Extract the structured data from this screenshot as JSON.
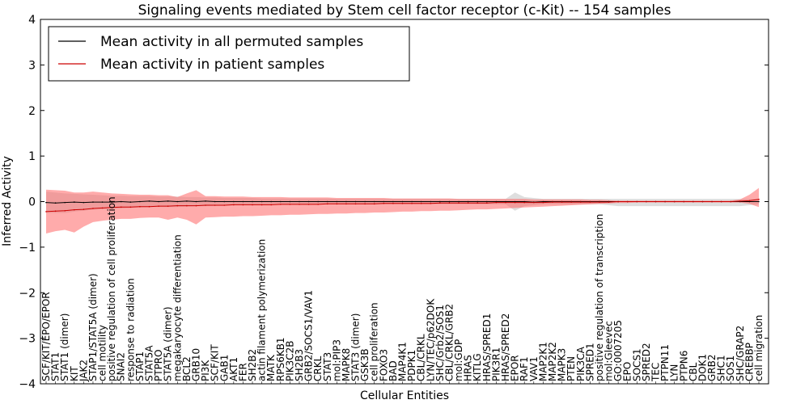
{
  "chart_data": {
    "type": "line",
    "title": "Signaling events mediated by Stem cell factor receptor (c-Kit) -- 154 samples",
    "xlabel": "Cellular Entities",
    "ylabel": "Inferred Activity",
    "ylim": [
      -4,
      4
    ],
    "yticks": [
      "4",
      "3",
      "2",
      "1",
      "0",
      "−1",
      "−2",
      "−3",
      "−4"
    ],
    "legend_position": "top-left",
    "colors": {
      "permuted_line": "#000000",
      "patient_line": "#cc0000",
      "permuted_band": "#c8c8c8",
      "patient_band": "#ff6666",
      "axis": "#000000"
    },
    "categories": [
      "SCF/KIT/EPO/EPOR",
      "STAT1",
      "STAT1 (dimer)",
      "KIT",
      "JAK2",
      "STAP1/STAT5A (dimer)",
      "cell motility",
      "positive regulation of cell proliferation",
      "SNAI2",
      "response to radiation",
      "STAP1",
      "STAT5A",
      "PTPRO",
      "STAT5A (dimer)",
      "megakaryocyte differentiation",
      "BCL2",
      "GRB10",
      "PI3K",
      "SCF/KIT",
      "GAB1",
      "AKT1",
      "FER",
      "SH2B2",
      "actin filament polymerization",
      "MATK",
      "RPS6KB1",
      "PIK3C2B",
      "SH2B3",
      "GRB2/SOCS1/VAV1",
      "CRKL",
      "STAT3",
      "mol:PIP3",
      "MAPK8",
      "STAT3 (dimer)",
      "GSK3B",
      "cell proliferation",
      "FOXO3",
      "BAD",
      "MAP4K1",
      "PDPK1",
      "CBL/CRKL",
      "LYN/TEC/p62DOK",
      "SHC/Grb2/SOS1",
      "CBL/CRKL/GRB2",
      "mol:GDP",
      "HRAS",
      "KITLG",
      "HRAS/SPRED1",
      "PIK3R1",
      "HRAS/SPRED2",
      "EPOR",
      "RAF1",
      "VAV1",
      "MAP2K1",
      "MAP2K2",
      "MAPK3",
      "PTEN",
      "PIK3CA",
      "SPRED1",
      "positive regulation of transcription",
      "mol:Gleevec",
      "GO:0007205",
      "EPO",
      "SOCS1",
      "SPRED2",
      "TEC",
      "PTPN11",
      "LYN",
      "PTPN6",
      "CBL",
      "DOK1",
      "GRB2",
      "SHC1",
      "SOS1",
      "SHC/GRAP2",
      "CREBBP",
      "cell migration"
    ],
    "series": [
      {
        "name": "Mean activity in all permuted samples",
        "values": [
          -0.02,
          -0.03,
          -0.02,
          -0.01,
          -0.02,
          -0.01,
          -0.01,
          -0.01,
          0,
          -0.01,
          0,
          0.01,
          0,
          0.01,
          0,
          0.01,
          0,
          0.01,
          0,
          0,
          0,
          0,
          0,
          0,
          0,
          0,
          0,
          0,
          0,
          0,
          0,
          0,
          0,
          0,
          0,
          0,
          0,
          0,
          0,
          0,
          0,
          0,
          0,
          0,
          0,
          0,
          0,
          0,
          0,
          0,
          0,
          0,
          -0.01,
          0,
          0,
          0,
          0,
          0,
          0,
          0,
          0,
          0,
          0,
          0,
          0,
          0,
          0,
          0,
          0,
          0,
          0,
          0,
          0,
          0,
          0,
          0,
          0
        ],
        "band_lower": [
          -0.25,
          -0.25,
          -0.25,
          -0.22,
          -0.2,
          -0.18,
          -0.17,
          -0.16,
          -0.15,
          -0.14,
          -0.13,
          -0.12,
          -0.12,
          -0.12,
          -0.12,
          -0.11,
          -0.1,
          -0.1,
          -0.09,
          -0.09,
          -0.08,
          -0.08,
          -0.08,
          -0.08,
          -0.07,
          -0.07,
          -0.07,
          -0.07,
          -0.07,
          -0.06,
          -0.06,
          -0.06,
          -0.06,
          -0.06,
          -0.06,
          -0.06,
          -0.06,
          -0.06,
          -0.06,
          -0.06,
          -0.06,
          -0.06,
          -0.06,
          -0.06,
          -0.06,
          -0.06,
          -0.06,
          -0.06,
          -0.06,
          -0.06,
          -0.2,
          -0.1,
          -0.08,
          -0.06,
          -0.06,
          -0.06,
          -0.06,
          -0.06,
          -0.06,
          -0.06,
          -0.08,
          -0.1,
          -0.1,
          -0.1,
          -0.1,
          -0.1,
          -0.1,
          -0.1,
          -0.1,
          -0.1,
          -0.1,
          -0.1,
          -0.1,
          -0.1,
          -0.1,
          -0.08,
          -0.06
        ],
        "band_upper": [
          0.22,
          0.2,
          0.18,
          0.17,
          0.16,
          0.15,
          0.14,
          0.13,
          0.13,
          0.12,
          0.12,
          0.12,
          0.11,
          0.11,
          0.11,
          0.1,
          0.1,
          0.09,
          0.09,
          0.08,
          0.08,
          0.08,
          0.08,
          0.07,
          0.07,
          0.07,
          0.07,
          0.07,
          0.07,
          0.07,
          0.07,
          0.06,
          0.06,
          0.06,
          0.06,
          0.06,
          0.06,
          0.06,
          0.06,
          0.06,
          0.06,
          0.06,
          0.06,
          0.06,
          0.06,
          0.06,
          0.06,
          0.06,
          0.06,
          0.06,
          0.2,
          0.1,
          0.08,
          0.06,
          0.06,
          0.06,
          0.06,
          0.06,
          0.06,
          0.06,
          0.06,
          0.06,
          0.06,
          0.06,
          0.06,
          0.06,
          0.06,
          0.06,
          0.06,
          0.06,
          0.06,
          0.06,
          0.06,
          0.06,
          0.06,
          0.06,
          0.06
        ]
      },
      {
        "name": "Mean activity in patient samples",
        "values": [
          -0.22,
          -0.21,
          -0.2,
          -0.18,
          -0.17,
          -0.15,
          -0.14,
          -0.13,
          -0.12,
          -0.12,
          -0.11,
          -0.11,
          -0.1,
          -0.1,
          -0.09,
          -0.09,
          -0.09,
          -0.08,
          -0.08,
          -0.08,
          -0.07,
          -0.07,
          -0.07,
          -0.07,
          -0.07,
          -0.06,
          -0.06,
          -0.06,
          -0.06,
          -0.06,
          -0.05,
          -0.05,
          -0.05,
          -0.05,
          -0.05,
          -0.05,
          -0.04,
          -0.04,
          -0.04,
          -0.04,
          -0.04,
          -0.04,
          -0.03,
          -0.03,
          -0.03,
          -0.03,
          -0.03,
          -0.03,
          -0.02,
          -0.02,
          -0.02,
          -0.02,
          -0.02,
          -0.02,
          -0.01,
          -0.01,
          -0.01,
          -0.01,
          -0.01,
          -0.01,
          -0.01,
          0,
          0,
          0,
          0,
          0,
          0,
          0,
          0,
          0,
          0,
          0,
          0,
          0,
          0.01,
          0.02,
          0.05
        ],
        "band_lower": [
          -0.7,
          -0.65,
          -0.62,
          -0.68,
          -0.55,
          -0.45,
          -0.42,
          -0.4,
          -0.38,
          -0.38,
          -0.36,
          -0.35,
          -0.35,
          -0.4,
          -0.35,
          -0.4,
          -0.5,
          -0.35,
          -0.34,
          -0.33,
          -0.33,
          -0.32,
          -0.32,
          -0.31,
          -0.3,
          -0.3,
          -0.29,
          -0.29,
          -0.28,
          -0.27,
          -0.27,
          -0.26,
          -0.26,
          -0.25,
          -0.25,
          -0.24,
          -0.24,
          -0.23,
          -0.22,
          -0.22,
          -0.21,
          -0.21,
          -0.2,
          -0.2,
          -0.19,
          -0.18,
          -0.17,
          -0.17,
          -0.16,
          -0.15,
          -0.14,
          -0.13,
          -0.12,
          -0.11,
          -0.1,
          -0.09,
          -0.08,
          -0.07,
          -0.06,
          -0.05,
          -0.04,
          -0.03,
          -0.03,
          -0.02,
          -0.02,
          -0.02,
          -0.02,
          -0.02,
          -0.02,
          -0.02,
          -0.02,
          -0.02,
          -0.02,
          -0.02,
          -0.02,
          -0.05,
          -0.12
        ],
        "band_upper": [
          0.26,
          0.25,
          0.24,
          0.2,
          0.2,
          0.22,
          0.2,
          0.18,
          0.17,
          0.16,
          0.15,
          0.15,
          0.14,
          0.14,
          0.1,
          0.18,
          0.25,
          0.12,
          0.12,
          0.11,
          0.11,
          0.11,
          0.1,
          0.1,
          0.1,
          0.1,
          0.09,
          0.09,
          0.09,
          0.09,
          0.09,
          0.08,
          0.08,
          0.08,
          0.08,
          0.08,
          0.08,
          0.07,
          0.07,
          0.07,
          0.07,
          0.07,
          0.07,
          0.07,
          0.06,
          0.06,
          0.06,
          0.06,
          0.06,
          0.06,
          0.06,
          0.06,
          0.05,
          0.05,
          0.05,
          0.05,
          0.05,
          0.05,
          0.04,
          0.04,
          0.03,
          0.02,
          0.02,
          0.02,
          0.02,
          0.02,
          0.02,
          0.02,
          0.02,
          0.02,
          0.02,
          0.02,
          0.02,
          0.02,
          0.05,
          0.15,
          0.3
        ]
      }
    ]
  }
}
